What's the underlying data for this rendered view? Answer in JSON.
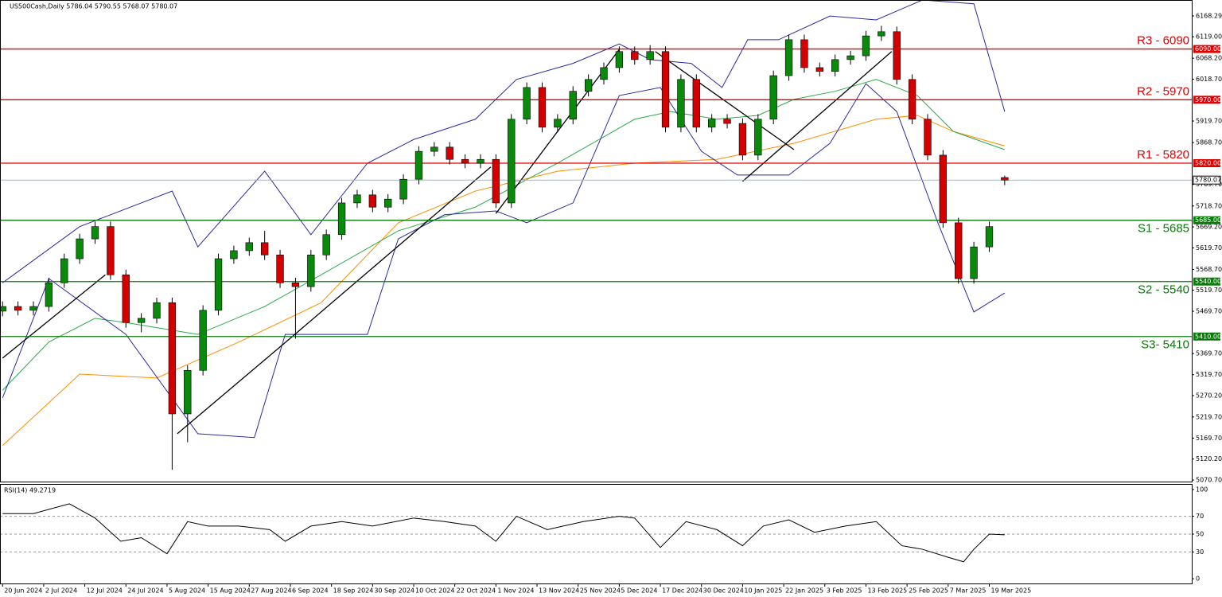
{
  "chart_data": {
    "type": "candlestick",
    "title": "US500Cash,Daily  5786.04 5790.55 5768.07 5780.07",
    "up_color": "#0a8a0a",
    "down_color": "#d40000",
    "x": [
      0,
      3,
      6,
      9,
      12,
      15,
      18,
      21,
      24,
      27,
      30,
      33,
      36,
      39,
      42,
      45,
      48,
      51,
      54,
      57,
      60,
      63,
      66,
      69,
      72,
      75,
      78,
      81,
      84,
      87,
      90,
      93,
      96,
      99,
      102,
      105,
      108,
      111,
      114,
      117,
      120,
      123,
      126,
      129,
      132,
      135,
      138,
      141,
      144,
      147,
      150,
      153,
      156,
      159,
      162,
      165,
      168,
      171,
      174,
      177,
      180,
      183,
      186,
      189,
      192,
      195
    ],
    "open": [
      5470,
      5481,
      5472,
      5481,
      5537,
      5594,
      5641,
      5670,
      5556,
      5443,
      5453,
      5490,
      5227,
      5330,
      5472,
      5594,
      5613,
      5632,
      5603,
      5537,
      5528,
      5603,
      5651,
      5726,
      5745,
      5716,
      5735,
      5782,
      5848,
      5858,
      5829,
      5820,
      5829,
      5726,
      5924,
      5999,
      5905,
      5924,
      5990,
      6018,
      6046,
      6084,
      6065,
      6084,
      5905,
      6018,
      5905,
      5924,
      5914,
      5839,
      5924,
      6027,
      6112,
      6046,
      6037,
      6065,
      6074,
      6121,
      6131,
      6018,
      5924,
      5839,
      5679,
      5547,
      5622,
      5786.04
    ],
    "high": [
      5493,
      5493,
      5493,
      5549,
      5606,
      5653,
      5682,
      5682,
      5568,
      5465,
      5502,
      5502,
      5342,
      5484,
      5606,
      5625,
      5644,
      5660,
      5615,
      5549,
      5615,
      5663,
      5738,
      5757,
      5757,
      5747,
      5794,
      5860,
      5870,
      5870,
      5841,
      5841,
      5841,
      5936,
      6011,
      6011,
      5936,
      6002,
      6030,
      6058,
      6096,
      6096,
      6099,
      6096,
      6030,
      6030,
      5936,
      5936,
      5926,
      5936,
      6039,
      6124,
      6124,
      6058,
      6077,
      6086,
      6133,
      6145,
      6143,
      6030,
      5936,
      5851,
      5691,
      5634,
      5682,
      5790.55
    ],
    "low": [
      5458,
      5460,
      5460,
      5469,
      5525,
      5582,
      5629,
      5544,
      5431,
      5420,
      5441,
      5095,
      5160,
      5318,
      5460,
      5582,
      5601,
      5591,
      5525,
      5405,
      5516,
      5591,
      5639,
      5714,
      5704,
      5704,
      5723,
      5770,
      5836,
      5817,
      5808,
      5808,
      5714,
      5714,
      5912,
      5893,
      5893,
      5912,
      5978,
      6006,
      6034,
      6053,
      6053,
      5893,
      5893,
      5893,
      5893,
      5902,
      5827,
      5827,
      5912,
      6015,
      6034,
      6025,
      6025,
      6053,
      6062,
      6109,
      6006,
      5912,
      5827,
      5667,
      5535,
      5535,
      5610,
      5768.07
    ],
    "close": [
      5481,
      5472,
      5481,
      5537,
      5594,
      5641,
      5670,
      5556,
      5443,
      5453,
      5490,
      5227,
      5330,
      5472,
      5594,
      5613,
      5632,
      5603,
      5537,
      5528,
      5603,
      5651,
      5726,
      5745,
      5716,
      5735,
      5782,
      5848,
      5858,
      5829,
      5820,
      5829,
      5726,
      5924,
      5999,
      5905,
      5924,
      5990,
      6018,
      6046,
      6084,
      6065,
      6084,
      5905,
      6018,
      5905,
      5924,
      5914,
      5839,
      5924,
      6027,
      6112,
      6046,
      6037,
      6065,
      6074,
      6121,
      6131,
      6018,
      5924,
      5839,
      5679,
      5547,
      5622,
      5670,
      5780.07
    ],
    "xlim": [
      -0.5,
      231.4
    ],
    "xticks": [
      {
        "value": 0,
        "label": "20 Jun 2024"
      },
      {
        "value": 8,
        "label": "2 Jul 2024"
      },
      {
        "value": 16,
        "label": "12 Jul 2024"
      },
      {
        "value": 24,
        "label": "24 Jul 2024"
      },
      {
        "value": 32,
        "label": "5 Aug 2024"
      },
      {
        "value": 40,
        "label": "15 Aug 2024"
      },
      {
        "value": 48,
        "label": "27 Aug 2024"
      },
      {
        "value": 56,
        "label": "6 Sep 2024"
      },
      {
        "value": 64,
        "label": "18 Sep 2024"
      },
      {
        "value": 72,
        "label": "30 Sep 2024"
      },
      {
        "value": 80,
        "label": "10 Oct 2024"
      },
      {
        "value": 88,
        "label": "22 Oct 2024"
      },
      {
        "value": 96,
        "label": "1 Nov 2024"
      },
      {
        "value": 104,
        "label": "13 Nov 2024"
      },
      {
        "value": 112,
        "label": "25 Nov 2024"
      },
      {
        "value": 120,
        "label": "5 Dec 2024"
      },
      {
        "value": 128,
        "label": "17 Dec 2024"
      },
      {
        "value": 136,
        "label": "30 Dec 2024"
      },
      {
        "value": 144,
        "label": "10 Jan 2025"
      },
      {
        "value": 152,
        "label": "22 Jan 2025"
      },
      {
        "value": 160,
        "label": "3 Feb 2025"
      },
      {
        "value": 168,
        "label": "13 Feb 2025"
      },
      {
        "value": 176,
        "label": "25 Feb 2025"
      },
      {
        "value": 184,
        "label": "7 Mar 2025"
      },
      {
        "value": 192,
        "label": "19 Mar 2025"
      }
    ],
    "ylim": [
      5066.9,
      6200.3
    ],
    "yticks": [
      6168.29,
      {
        "value": 6119,
        "label": "6119.00"
      },
      {
        "value": 6068.2,
        "label": "6068.20"
      },
      {
        "value": 6018.7,
        "label": "6018.70"
      },
      {
        "value": 5919.7,
        "label": "5919.70"
      },
      {
        "value": 5868.7,
        "label": "5868.70"
      },
      {
        "value": 5769.7,
        "label": "5769.70"
      },
      {
        "value": 5718.7,
        "label": "5718.70"
      },
      {
        "value": 5669.2,
        "label": "5669.20"
      },
      {
        "value": 5619.7,
        "label": "5619.70"
      },
      {
        "value": 5568.7,
        "label": "5568.70"
      },
      {
        "value": 5519.7,
        "label": "5519.70"
      },
      {
        "value": 5469.7,
        "label": "5469.70"
      },
      {
        "value": 5369.7,
        "label": "5369.70"
      },
      {
        "value": 5319.7,
        "label": "5319.70"
      },
      {
        "value": 5270.2,
        "label": "5270.20"
      },
      {
        "value": 5219.7,
        "label": "5219.70"
      },
      {
        "value": 5169.7,
        "label": "5169.70"
      },
      {
        "value": 5120.2,
        "label": "5120.20"
      },
      {
        "value": 5070.7,
        "label": "5070.70"
      }
    ],
    "levels": [
      {
        "name": "R3 - 6090",
        "value": 6090,
        "tag": "6090.00",
        "color": "#e00000"
      },
      {
        "name": "R2 - 5970",
        "value": 5970,
        "tag": "5970.00",
        "color": "#e00000"
      },
      {
        "name": "R1 - 5820",
        "value": 5820,
        "tag": "5820.00",
        "color": "#e00000"
      },
      {
        "name": "S1 - 5685",
        "value": 5685,
        "tag": "5685.00",
        "color": "#0a7a0a"
      },
      {
        "name": "S2 - 5540",
        "value": 5540,
        "tag": "5540.00",
        "color": "#0a7a0a"
      },
      {
        "name": "S3- 5410",
        "value": 5410,
        "tag": "5410.00",
        "color": "#0a7a0a"
      }
    ],
    "current": {
      "value": 5780.07,
      "label": "5780.07"
    },
    "overlays": [
      {
        "color": "#ff8c00",
        "x": [
          0,
          15,
          30,
          46,
          62,
          77,
          92,
          108,
          123,
          139,
          154,
          170,
          178,
          185,
          195
        ],
        "values": [
          5152,
          5321,
          5312,
          5397,
          5490,
          5679,
          5754,
          5801,
          5820,
          5829,
          5867,
          5924,
          5933,
          5895,
          5861
        ]
      },
      {
        "color": "#2eaa4a",
        "x": [
          0,
          9,
          18,
          24,
          38,
          51,
          62,
          77,
          92,
          108,
          123,
          130,
          139,
          147,
          154,
          162,
          170,
          178,
          185,
          195
        ],
        "values": [
          5283,
          5397,
          5453,
          5443,
          5415,
          5481,
          5556,
          5660,
          5716,
          5820,
          5924,
          5942,
          5924,
          5933,
          5971,
          5990,
          6018,
          5980,
          5895,
          5852
        ]
      },
      {
        "color": "#2a2aa0",
        "x": [
          0,
          15,
          33,
          38,
          51,
          60,
          71,
          80,
          92,
          100,
          111,
          120,
          126,
          134,
          140,
          145,
          151,
          161,
          170,
          179,
          189,
          195
        ],
        "values": [
          5537,
          5670,
          5754,
          5622,
          5801,
          5651,
          5820,
          5876,
          5924,
          6018,
          6056,
          6102,
          6065,
          6056,
          5999,
          6112,
          6112,
          6168,
          6159,
          6206,
          6197,
          5942
        ]
      },
      {
        "color": "#2a2aa0",
        "x": [
          0,
          9,
          24,
          38,
          49,
          55,
          71,
          77,
          86,
          96,
          102,
          111,
          120,
          128,
          136,
          143,
          153,
          161,
          168,
          174,
          182,
          189,
          195
        ],
        "values": [
          5265,
          5547,
          5415,
          5180,
          5171,
          5415,
          5415,
          5641,
          5698,
          5707,
          5679,
          5726,
          5980,
          5999,
          5848,
          5792,
          5792,
          5867,
          6008,
          5942,
          5679,
          5468,
          5513
        ]
      },
      {
        "color": "#000000",
        "x": [
          0,
          20
        ],
        "values": [
          5359,
          5556
        ]
      },
      {
        "color": "#000000",
        "x": [
          34,
          56
        ],
        "values": [
          5180,
          5406
        ]
      },
      {
        "color": "#000000",
        "x": [
          56,
          95
        ],
        "values": [
          5406,
          5811
        ]
      },
      {
        "color": "#000000",
        "x": [
          96,
          120
        ],
        "values": [
          5701,
          6089
        ]
      },
      {
        "color": "#000000",
        "x": [
          127,
          154
        ],
        "values": [
          6084,
          5852
        ]
      },
      {
        "color": "#000000",
        "x": [
          144,
          173
        ],
        "values": [
          5777,
          6084
        ]
      }
    ],
    "rsi": {
      "title": "RSI(14) 49.2719",
      "color": "#000000",
      "x": [
        0,
        6,
        13,
        18,
        23,
        27,
        32,
        36,
        40,
        46,
        52,
        55,
        60,
        66,
        72,
        80,
        86,
        92,
        96,
        100,
        106,
        113,
        120,
        123,
        128,
        133,
        139,
        144,
        148,
        153,
        158,
        164,
        170,
        175,
        179,
        184,
        187,
        189,
        192,
        195
      ],
      "values": [
        73,
        73,
        84,
        68,
        42,
        46,
        28,
        64,
        59,
        59,
        55,
        42,
        59,
        64,
        59,
        68,
        64,
        59,
        42,
        70,
        55,
        64,
        70,
        68,
        35,
        64,
        55,
        37,
        59,
        66,
        52,
        59,
        64,
        37,
        33,
        24,
        19,
        33,
        50,
        49.27
      ],
      "ylim": [
        -5.3,
        105.3
      ],
      "yticks": [
        100,
        70,
        50,
        30,
        0
      ],
      "grid_levels": [
        70,
        50,
        30
      ]
    }
  }
}
